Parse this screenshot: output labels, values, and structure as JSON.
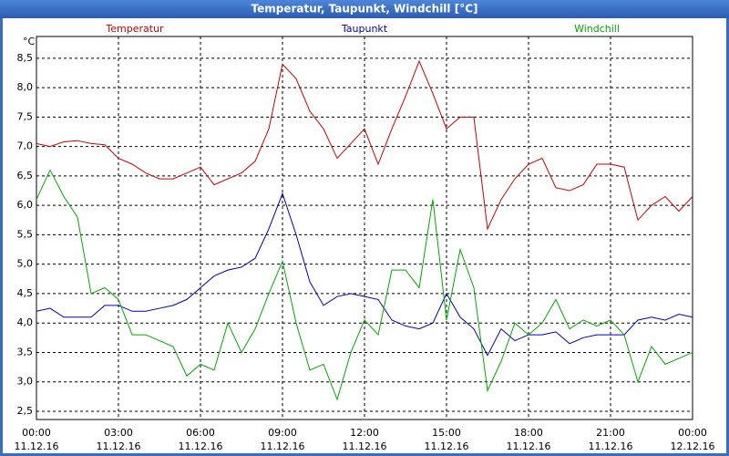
{
  "chart_data": {
    "type": "line",
    "title": "Temperatur, Taupunkt, Windchill [°C]",
    "y_unit": "°C",
    "x": [
      0,
      0.5,
      1,
      1.5,
      2,
      2.5,
      3,
      3.5,
      4,
      4.5,
      5,
      5.5,
      6,
      6.5,
      7,
      7.5,
      8,
      8.5,
      9,
      9.5,
      10,
      10.5,
      11,
      11.5,
      12,
      12.5,
      13,
      13.5,
      14,
      14.5,
      15,
      15.5,
      16,
      16.5,
      17,
      17.5,
      18,
      18.5,
      19,
      19.5,
      20,
      20.5,
      21,
      21.5,
      22,
      22.5,
      23,
      23.5,
      24
    ],
    "series": [
      {
        "name": "Temperatur",
        "color": "#cc0000",
        "values": [
          7.05,
          7.0,
          7.08,
          7.1,
          7.05,
          7.03,
          6.8,
          6.7,
          6.55,
          6.45,
          6.45,
          6.55,
          6.65,
          6.35,
          6.45,
          6.55,
          6.75,
          7.3,
          8.4,
          8.15,
          7.6,
          7.3,
          6.8,
          7.05,
          7.3,
          6.7,
          7.3,
          7.85,
          8.45,
          7.9,
          7.3,
          7.5,
          7.5,
          5.6,
          6.1,
          6.45,
          6.7,
          6.8,
          6.3,
          6.25,
          6.35,
          6.7,
          6.7,
          6.65,
          5.75,
          6.0,
          6.15,
          5.9,
          6.15
        ]
      },
      {
        "name": "Taupunkt",
        "color": "#0000bb",
        "values": [
          4.2,
          4.25,
          4.1,
          4.1,
          4.1,
          4.3,
          4.3,
          4.2,
          4.2,
          4.25,
          4.3,
          4.4,
          4.6,
          4.8,
          4.9,
          4.95,
          5.1,
          5.6,
          6.2,
          5.5,
          4.7,
          4.3,
          4.45,
          4.5,
          4.45,
          4.4,
          4.05,
          3.95,
          3.9,
          4.0,
          4.5,
          4.1,
          3.9,
          3.45,
          3.9,
          3.7,
          3.8,
          3.8,
          3.85,
          3.65,
          3.75,
          3.8,
          3.8,
          3.8,
          4.05,
          4.1,
          4.05,
          4.15,
          4.1
        ]
      },
      {
        "name": "Windchill",
        "color": "#00aa00",
        "values": [
          6.1,
          6.6,
          6.15,
          5.8,
          4.5,
          4.6,
          4.4,
          3.8,
          3.8,
          3.7,
          3.6,
          3.1,
          3.3,
          3.2,
          4.0,
          3.5,
          3.9,
          4.5,
          5.05,
          4.0,
          3.2,
          3.3,
          2.7,
          3.5,
          4.05,
          3.8,
          4.9,
          4.9,
          4.6,
          6.1,
          4.05,
          5.25,
          4.6,
          2.85,
          3.35,
          4.0,
          3.8,
          4.0,
          4.4,
          3.9,
          4.05,
          3.95,
          4.05,
          3.8,
          3.0,
          3.6,
          3.3,
          3.4,
          3.5
        ]
      }
    ],
    "xlim": [
      0,
      24
    ],
    "xticks": [
      {
        "value": 0,
        "label": "00:00"
      },
      {
        "value": 3,
        "label": "03:00"
      },
      {
        "value": 6,
        "label": "06:00"
      },
      {
        "value": 9,
        "label": "09:00"
      },
      {
        "value": 12,
        "label": "12:00"
      },
      {
        "value": 15,
        "label": "15:00"
      },
      {
        "value": 18,
        "label": "18:00"
      },
      {
        "value": 21,
        "label": "21:00"
      },
      {
        "value": 24,
        "label": "00:00"
      }
    ],
    "xtick_dates": [
      "11.12.16",
      "11.12.16",
      "11.12.16",
      "11.12.16",
      "11.12.16",
      "11.12.16",
      "11.12.16",
      "11.12.16",
      "12.12.16"
    ],
    "ylim": [
      2.36,
      8.87
    ],
    "yticks": [
      {
        "value": 2.5,
        "label": "2,5"
      },
      {
        "value": 3,
        "label": "3,0"
      },
      {
        "value": 3.5,
        "label": "3,5"
      },
      {
        "value": 4,
        "label": "4,0"
      },
      {
        "value": 4.5,
        "label": "4,5"
      },
      {
        "value": 5,
        "label": "5,0"
      },
      {
        "value": 5.5,
        "label": "5,5"
      },
      {
        "value": 6,
        "label": "6,0"
      },
      {
        "value": 6.5,
        "label": "6,5"
      },
      {
        "value": 7,
        "label": "7,0"
      },
      {
        "value": 7.5,
        "label": "7,5"
      },
      {
        "value": 8,
        "label": "8,0"
      },
      {
        "value": 8.5,
        "label": "8,5"
      }
    ],
    "grid": true
  }
}
